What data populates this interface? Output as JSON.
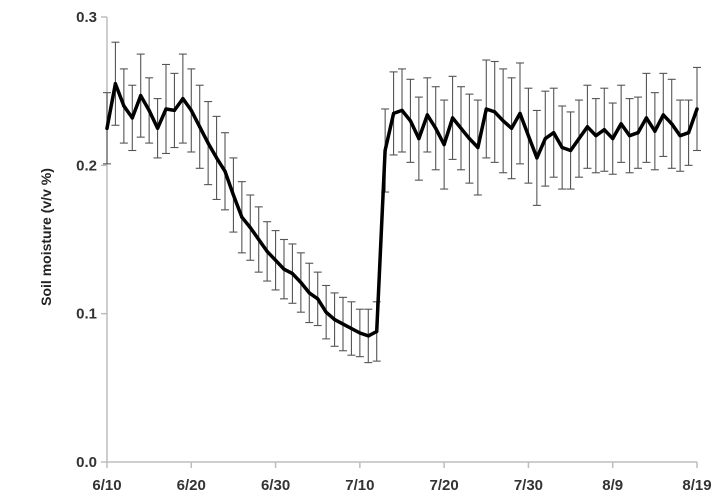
{
  "chart_data": {
    "type": "line",
    "title": "",
    "xlabel": "",
    "ylabel": "Soil moisture (v/v %)",
    "xlim": [
      "6/10",
      "8/19"
    ],
    "ylim": [
      0,
      0.3
    ],
    "x_ticks": [
      "6/10",
      "6/20",
      "6/30",
      "7/10",
      "7/20",
      "7/30",
      "8/9",
      "8/19"
    ],
    "y_ticks": [
      "0.0",
      "0.1",
      "0.2",
      "0.3"
    ],
    "grid": false,
    "legend": "none",
    "series": [
      {
        "color": "#000000",
        "x": [
          "6/10",
          "6/11",
          "6/12",
          "6/13",
          "6/14",
          "6/15",
          "6/16",
          "6/17",
          "6/18",
          "6/19",
          "6/20",
          "6/21",
          "6/22",
          "6/23",
          "6/24",
          "6/25",
          "6/26",
          "6/27",
          "6/28",
          "6/29",
          "6/30",
          "7/1",
          "7/2",
          "7/3",
          "7/4",
          "7/5",
          "7/6",
          "7/7",
          "7/8",
          "7/9",
          "7/10",
          "7/11",
          "7/12",
          "7/13",
          "7/14",
          "7/15",
          "7/16",
          "7/17",
          "7/18",
          "7/19",
          "7/20",
          "7/21",
          "7/22",
          "7/23",
          "7/24",
          "7/25",
          "7/26",
          "7/27",
          "7/28",
          "7/29",
          "7/30",
          "7/31",
          "8/1",
          "8/2",
          "8/3",
          "8/4",
          "8/5",
          "8/6",
          "8/7",
          "8/8",
          "8/9",
          "8/10",
          "8/11",
          "8/12",
          "8/13",
          "8/14",
          "8/15",
          "8/16",
          "8/17",
          "8/18",
          "8/19"
        ],
        "values": [
          0.225,
          0.255,
          0.24,
          0.232,
          0.247,
          0.237,
          0.225,
          0.238,
          0.237,
          0.245,
          0.237,
          0.226,
          0.215,
          0.205,
          0.196,
          0.18,
          0.165,
          0.158,
          0.15,
          0.142,
          0.136,
          0.13,
          0.127,
          0.121,
          0.114,
          0.11,
          0.101,
          0.096,
          0.093,
          0.09,
          0.087,
          0.085,
          0.088,
          0.21,
          0.235,
          0.237,
          0.23,
          0.218,
          0.234,
          0.225,
          0.214,
          0.232,
          0.225,
          0.218,
          0.212,
          0.238,
          0.236,
          0.23,
          0.225,
          0.235,
          0.22,
          0.205,
          0.218,
          0.222,
          0.212,
          0.21,
          0.218,
          0.226,
          0.22,
          0.224,
          0.218,
          0.228,
          0.22,
          0.222,
          0.232,
          0.223,
          0.234,
          0.228,
          0.22,
          0.222,
          0.238
        ],
        "errors": [
          0.024,
          0.028,
          0.025,
          0.022,
          0.028,
          0.022,
          0.02,
          0.03,
          0.025,
          0.03,
          0.028,
          0.028,
          0.028,
          0.028,
          0.026,
          0.025,
          0.024,
          0.022,
          0.022,
          0.02,
          0.02,
          0.02,
          0.02,
          0.02,
          0.02,
          0.018,
          0.018,
          0.018,
          0.018,
          0.018,
          0.016,
          0.018,
          0.02,
          0.028,
          0.028,
          0.028,
          0.028,
          0.028,
          0.025,
          0.028,
          0.03,
          0.028,
          0.028,
          0.03,
          0.032,
          0.033,
          0.034,
          0.035,
          0.034,
          0.034,
          0.032,
          0.032,
          0.032,
          0.03,
          0.028,
          0.026,
          0.026,
          0.028,
          0.025,
          0.028,
          0.024,
          0.026,
          0.025,
          0.024,
          0.03,
          0.026,
          0.028,
          0.03,
          0.024,
          0.022,
          0.028
        ]
      }
    ]
  }
}
